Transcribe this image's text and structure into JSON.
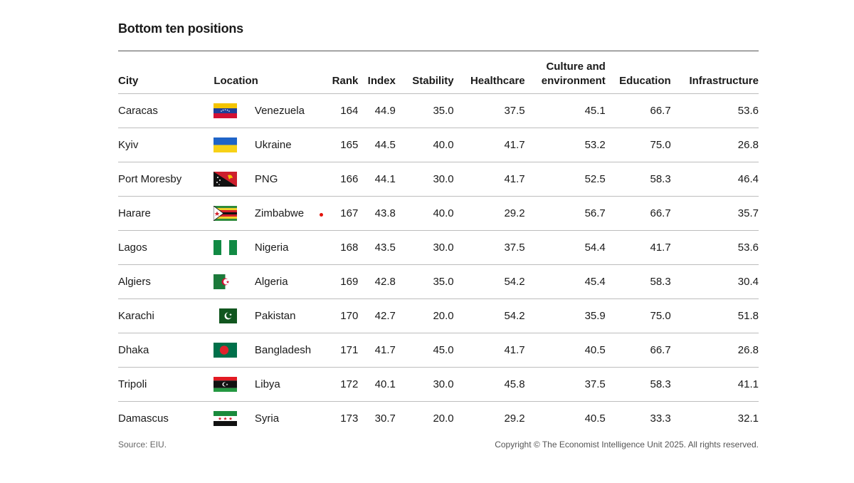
{
  "title": "Bottom ten positions",
  "columns": {
    "city": "City",
    "location": "Location",
    "rank": "Rank",
    "index": "Index",
    "stability": "Stability",
    "healthcare": "Healthcare",
    "culture_line1": "Culture and",
    "culture_line2": "environment",
    "education": "Education",
    "infrastructure": "Infrastructure"
  },
  "rows": [
    {
      "city": "Caracas",
      "location": "Venezuela",
      "flag": "venezuela-flag-icon",
      "rank": "164",
      "index": "44.9",
      "stability": "35.0",
      "healthcare": "37.5",
      "culture": "45.1",
      "education": "66.7",
      "infrastructure": "53.6"
    },
    {
      "city": "Kyiv",
      "location": "Ukraine",
      "flag": "ukraine-flag-icon",
      "rank": "165",
      "index": "44.5",
      "stability": "40.0",
      "healthcare": "41.7",
      "culture": "53.2",
      "education": "75.0",
      "infrastructure": "26.8"
    },
    {
      "city": "Port Moresby",
      "location": "PNG",
      "flag": "png-flag-icon",
      "rank": "166",
      "index": "44.1",
      "stability": "30.0",
      "healthcare": "41.7",
      "culture": "52.5",
      "education": "58.3",
      "infrastructure": "46.4"
    },
    {
      "city": "Harare",
      "location": "Zimbabwe",
      "flag": "zimbabwe-flag-icon",
      "rank": "167",
      "index": "43.8",
      "stability": "40.0",
      "healthcare": "29.2",
      "culture": "56.7",
      "education": "66.7",
      "infrastructure": "35.7"
    },
    {
      "city": "Lagos",
      "location": "Nigeria",
      "flag": "nigeria-flag-icon",
      "rank": "168",
      "index": "43.5",
      "stability": "30.0",
      "healthcare": "37.5",
      "culture": "54.4",
      "education": "41.7",
      "infrastructure": "53.6"
    },
    {
      "city": "Algiers",
      "location": "Algeria",
      "flag": "algeria-flag-icon",
      "rank": "169",
      "index": "42.8",
      "stability": "35.0",
      "healthcare": "54.2",
      "culture": "45.4",
      "education": "58.3",
      "infrastructure": "30.4"
    },
    {
      "city": "Karachi",
      "location": "Pakistan",
      "flag": "pakistan-flag-icon",
      "rank": "170",
      "index": "42.7",
      "stability": "20.0",
      "healthcare": "54.2",
      "culture": "35.9",
      "education": "75.0",
      "infrastructure": "51.8"
    },
    {
      "city": "Dhaka",
      "location": "Bangladesh",
      "flag": "bangladesh-flag-icon",
      "rank": "171",
      "index": "41.7",
      "stability": "45.0",
      "healthcare": "41.7",
      "culture": "40.5",
      "education": "66.7",
      "infrastructure": "26.8"
    },
    {
      "city": "Tripoli",
      "location": "Libya",
      "flag": "libya-flag-icon",
      "rank": "172",
      "index": "40.1",
      "stability": "30.0",
      "healthcare": "45.8",
      "culture": "37.5",
      "education": "58.3",
      "infrastructure": "41.1"
    },
    {
      "city": "Damascus",
      "location": "Syria",
      "flag": "syria-flag-icon",
      "rank": "173",
      "index": "30.7",
      "stability": "20.0",
      "healthcare": "29.2",
      "culture": "40.5",
      "education": "33.3",
      "infrastructure": "32.1"
    }
  ],
  "colors": {
    "accent_dot": "#e3120b",
    "rule": "#555555"
  },
  "footer": {
    "source": "Source: EIU.",
    "copyright": "Copyright © The Economist Intelligence Unit 2025. All rights reserved."
  }
}
